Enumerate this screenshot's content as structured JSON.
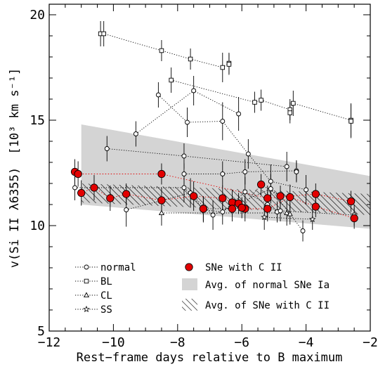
{
  "chart_data": {
    "type": "scatter",
    "xlabel": "Rest−frame days relative to B maximum",
    "ylabel_main": "v(Si II λ6355)",
    "ylabel_unit": "[10³ km s⁻¹]",
    "xlim": [
      -12,
      -2
    ],
    "ylim": [
      5,
      20.5
    ],
    "x_ticks": [
      -12,
      -10,
      -8,
      -6,
      -4,
      -2
    ],
    "x_tick_labels": [
      "−12",
      "−10",
      "−8",
      "−6",
      "−4",
      "−2"
    ],
    "y_ticks": [
      5,
      10,
      15,
      20
    ],
    "y_tick_labels": [
      "5",
      "10",
      "15",
      "20"
    ],
    "legend": {
      "left": [
        {
          "marker": "circle",
          "label": "normal"
        },
        {
          "marker": "square",
          "label": "BL"
        },
        {
          "marker": "triangle",
          "label": "CL"
        },
        {
          "marker": "star",
          "label": "SS"
        }
      ],
      "right": [
        {
          "marker": "red-circle",
          "label": "SNe with C II"
        },
        {
          "marker": "gray-band",
          "label": "Avg. of normal SNe Ia"
        },
        {
          "marker": "hatch-band",
          "label": "Avg. of SNe with C II"
        }
      ]
    },
    "bands": {
      "normal_avg": {
        "x": [
          -11.0,
          -2.0
        ],
        "upper": [
          14.8,
          12.35
        ],
        "lower": [
          11.0,
          9.85
        ]
      },
      "carbon_avg": {
        "x": [
          -11.0,
          -2.0
        ],
        "upper": [
          12.0,
          11.5
        ],
        "lower": [
          11.1,
          10.5
        ]
      }
    },
    "series": [
      {
        "marker": "square",
        "points": [
          [
            -10.4,
            19.1,
            0.6
          ],
          [
            -10.3,
            19.1,
            0.6
          ],
          [
            -8.5,
            18.3,
            0.5
          ],
          [
            -7.6,
            17.9,
            0.5
          ],
          [
            -6.6,
            17.5,
            0.7
          ],
          [
            -6.4,
            17.7,
            0.5
          ],
          [
            -6.4,
            17.65,
            0.5
          ]
        ]
      },
      {
        "marker": "square",
        "points": [
          [
            -8.2,
            16.9,
            0.6
          ],
          [
            -5.6,
            15.85,
            0.5
          ],
          [
            -5.4,
            15.95,
            0.5
          ],
          [
            -4.5,
            15.5,
            0.5
          ],
          [
            -4.5,
            15.35,
            0.5
          ],
          [
            -4.4,
            15.8,
            0.6
          ],
          [
            -2.6,
            15.0,
            0.8
          ],
          [
            -2.6,
            14.95,
            0.8
          ]
        ]
      },
      {
        "marker": "circle",
        "points": [
          [
            -8.6,
            16.2,
            0.6
          ],
          [
            -7.7,
            14.9,
            0.7
          ],
          [
            -6.6,
            14.95,
            0.9
          ],
          [
            -5.8,
            13.4,
            0.7
          ],
          [
            -5.1,
            12.1,
            0.8
          ],
          [
            -4.0,
            11.7,
            0.7
          ]
        ]
      },
      {
        "marker": "circle",
        "points": [
          [
            -9.3,
            14.35,
            0.6
          ],
          [
            -7.5,
            16.4,
            0.7
          ],
          [
            -6.1,
            15.3,
            0.8
          ]
        ]
      },
      {
        "marker": "circle",
        "points": [
          [
            -10.2,
            13.65,
            0.6
          ],
          [
            -7.8,
            13.3,
            0.6
          ],
          [
            -4.6,
            12.8,
            0.7
          ]
        ]
      },
      {
        "marker": "circle",
        "points": [
          [
            -7.8,
            12.45,
            0.5
          ],
          [
            -6.6,
            12.45,
            0.6
          ],
          [
            -5.9,
            12.55,
            0.6
          ],
          [
            -4.3,
            12.6,
            0.5
          ],
          [
            -4.3,
            12.55,
            0.5
          ]
        ]
      },
      {
        "marker": "circle",
        "points": [
          [
            -11.2,
            11.8,
            0.6
          ],
          [
            -7.8,
            11.8,
            0.7
          ],
          [
            -6.9,
            10.5,
            0.7
          ],
          [
            -5.1,
            11.75,
            0.7
          ],
          [
            -4.1,
            9.75,
            0.5
          ]
        ]
      },
      {
        "marker": "circle",
        "points": [
          [
            -9.6,
            10.75,
            0.8
          ],
          [
            -7.6,
            11.55,
            0.7
          ],
          [
            -7.2,
            10.75,
            0.6
          ],
          [
            -6.6,
            10.65,
            0.6
          ],
          [
            -5.9,
            11.6,
            0.7
          ],
          [
            -5.2,
            11.0,
            0.6
          ],
          [
            -4.9,
            10.65,
            0.5
          ],
          [
            -4.8,
            10.7,
            0.5
          ],
          [
            -2.5,
            10.5,
            0.5
          ]
        ]
      },
      {
        "marker": "triangle",
        "points": [
          [
            -8.5,
            10.6,
            0.6
          ],
          [
            -4.6,
            10.6,
            0.6
          ],
          [
            -4.5,
            10.55,
            0.5
          ]
        ]
      },
      {
        "marker": "star",
        "points": [
          [
            -5.3,
            10.4,
            0.6
          ],
          [
            -3.8,
            10.3,
            0.5
          ]
        ]
      },
      {
        "marker": "red-circle",
        "link": "red",
        "points": [
          [
            -11.2,
            12.55,
            0.6
          ],
          [
            -11.1,
            12.45,
            0.6
          ],
          [
            -8.5,
            12.45,
            0.5
          ],
          [
            -5.2,
            11.3,
            0.6
          ],
          [
            -3.7,
            11.5,
            0.5
          ],
          [
            -2.6,
            11.15,
            0.5
          ]
        ]
      },
      {
        "marker": "red-circle",
        "link": "red",
        "points": [
          [
            -11.0,
            11.55,
            0.6
          ],
          [
            -10.6,
            11.8,
            0.6
          ],
          [
            -10.1,
            11.3,
            0.6
          ],
          [
            -9.6,
            11.5,
            0.5
          ],
          [
            -8.5,
            11.2,
            0.6
          ],
          [
            -7.5,
            11.4,
            0.7
          ],
          [
            -6.6,
            11.3,
            0.6
          ],
          [
            -6.3,
            11.1,
            0.6
          ],
          [
            -6.1,
            11.05,
            0.5
          ],
          [
            -5.9,
            10.8,
            0.6
          ],
          [
            -5.2,
            10.8,
            0.6
          ],
          [
            -4.5,
            11.35,
            0.6
          ],
          [
            -3.7,
            10.9,
            0.5
          ],
          [
            -2.5,
            10.35,
            0.5
          ]
        ]
      },
      {
        "marker": "red-circle",
        "points": [
          [
            -7.2,
            10.8,
            0.6
          ],
          [
            -6.3,
            10.8,
            0.6
          ],
          [
            -5.4,
            11.95,
            0.5
          ],
          [
            -4.8,
            11.4,
            0.5
          ],
          [
            -6.0,
            10.85,
            0.5
          ]
        ]
      }
    ]
  }
}
